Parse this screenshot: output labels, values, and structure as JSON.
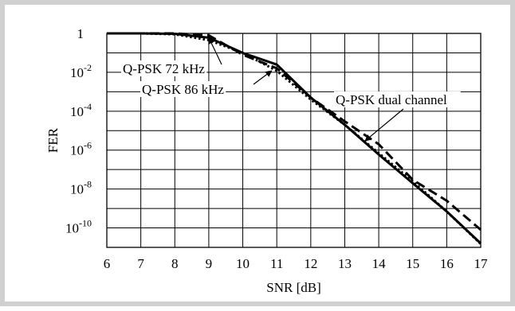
{
  "chart_data": {
    "type": "line",
    "title": "",
    "xlabel": "SNR [dB]",
    "ylabel": "FER",
    "xlim": [
      6,
      17
    ],
    "ylim_log10": [
      -11,
      0
    ],
    "yscale": "log",
    "grid": true,
    "x_ticks": [
      "6",
      "7",
      "8",
      "9",
      "10",
      "11",
      "12",
      "13",
      "14",
      "15",
      "16",
      "17"
    ],
    "y_ticks": [
      {
        "base": "1",
        "exp": ""
      },
      {
        "base": "10",
        "exp": "-2"
      },
      {
        "base": "10",
        "exp": "-4"
      },
      {
        "base": "10",
        "exp": "-6"
      },
      {
        "base": "10",
        "exp": "-8"
      },
      {
        "base": "10",
        "exp": "-10"
      }
    ],
    "series": [
      {
        "name": "Q-PSK 72 kHz",
        "style": "solid",
        "x": [
          6,
          7,
          8,
          9,
          10,
          11,
          12,
          13,
          14,
          15,
          16,
          17
        ],
        "y": [
          1,
          1,
          0.95,
          0.6,
          0.1,
          0.025,
          0.0005,
          2e-05,
          6e-07,
          2e-08,
          7e-10,
          1.6e-11
        ]
      },
      {
        "name": "Q-PSK 86 kHz",
        "style": "dotted",
        "x": [
          6,
          7,
          8,
          9,
          10,
          11,
          12,
          13,
          14,
          15,
          16,
          17
        ],
        "y": [
          1,
          1,
          0.9,
          0.45,
          0.1,
          0.012,
          0.0004,
          2e-05,
          7e-07,
          2.5e-08,
          7e-10,
          1.5e-11
        ]
      },
      {
        "name": "Q-PSK dual channel",
        "style": "dashed",
        "x": [
          6,
          7,
          8,
          9,
          10,
          11,
          12,
          13,
          14,
          15,
          16,
          17
        ],
        "y": [
          1,
          1,
          1,
          0.8,
          0.08,
          0.016,
          0.0005,
          3e-05,
          2e-06,
          3e-08,
          2.5e-09,
          8e-11
        ]
      }
    ],
    "annotations": [
      {
        "text": "Q-PSK 72 kHz",
        "points_to_x": 9.0,
        "points_to_y": 0.6
      },
      {
        "text": "Q-PSK 86 kHz",
        "points_to_x": 10.85,
        "points_to_y": 0.012
      },
      {
        "text": "Q-PSK dual channel",
        "points_to_x": 13.6,
        "points_to_y": 3e-06
      }
    ]
  }
}
